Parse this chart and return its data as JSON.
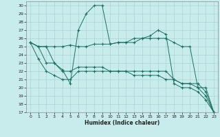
{
  "xlabel": "Humidex (Indice chaleur)",
  "background_color": "#c8ecec",
  "grid_color": "#aad4d4",
  "line_color": "#1a7060",
  "xlim": [
    -0.5,
    23.5
  ],
  "ylim": [
    17,
    30.5
  ],
  "xticks": [
    0,
    1,
    2,
    3,
    4,
    5,
    6,
    7,
    8,
    9,
    10,
    11,
    12,
    13,
    14,
    15,
    16,
    17,
    18,
    19,
    20,
    21,
    22,
    23
  ],
  "yticks": [
    17,
    18,
    19,
    20,
    21,
    22,
    23,
    24,
    25,
    26,
    27,
    28,
    29,
    30
  ],
  "series1_x": [
    0,
    1,
    2,
    3,
    4,
    5,
    6,
    7,
    8,
    9,
    10,
    11,
    12,
    13,
    14,
    15,
    16,
    17,
    18,
    19,
    20,
    21,
    22,
    23
  ],
  "series1_y": [
    25.5,
    25.0,
    25.0,
    25.0,
    25.0,
    25.2,
    25.0,
    25.0,
    25.3,
    25.3,
    25.3,
    25.5,
    25.5,
    25.5,
    26.0,
    26.0,
    26.0,
    26.0,
    25.5,
    25.0,
    25.0,
    20.0,
    20.0,
    17.0
  ],
  "series2_x": [
    0,
    1,
    2,
    3,
    4,
    5,
    6,
    7,
    8,
    9,
    10,
    11,
    12,
    13,
    14,
    15,
    16,
    17,
    18,
    19,
    20,
    21,
    22,
    23
  ],
  "series2_y": [
    25.5,
    25.0,
    25.0,
    23.0,
    22.2,
    20.5,
    27.0,
    29.0,
    30.0,
    30.0,
    25.3,
    25.5,
    25.5,
    26.0,
    26.0,
    26.3,
    27.0,
    26.5,
    20.5,
    20.0,
    20.0,
    19.5,
    18.5,
    17.0
  ],
  "series3_x": [
    0,
    1,
    2,
    3,
    4,
    5,
    6,
    7,
    8,
    9,
    10,
    11,
    12,
    13,
    14,
    15,
    16,
    17,
    18,
    19,
    20,
    21,
    22,
    23
  ],
  "series3_y": [
    25.5,
    25.0,
    23.0,
    23.0,
    22.0,
    22.0,
    22.5,
    22.5,
    22.5,
    22.5,
    22.0,
    22.0,
    22.0,
    22.0,
    22.0,
    22.0,
    22.0,
    22.0,
    21.0,
    20.5,
    20.5,
    20.5,
    19.5,
    17.0
  ],
  "series4_x": [
    0,
    1,
    2,
    3,
    4,
    5,
    6,
    7,
    8,
    9,
    10,
    11,
    12,
    13,
    14,
    15,
    16,
    17,
    18,
    19,
    20,
    21,
    22,
    23
  ],
  "series4_y": [
    25.5,
    23.5,
    22.0,
    21.5,
    21.0,
    21.0,
    22.0,
    22.0,
    22.0,
    22.0,
    22.0,
    22.0,
    22.0,
    21.5,
    21.5,
    21.5,
    21.5,
    21.0,
    21.0,
    20.5,
    20.5,
    20.0,
    19.0,
    17.0
  ]
}
